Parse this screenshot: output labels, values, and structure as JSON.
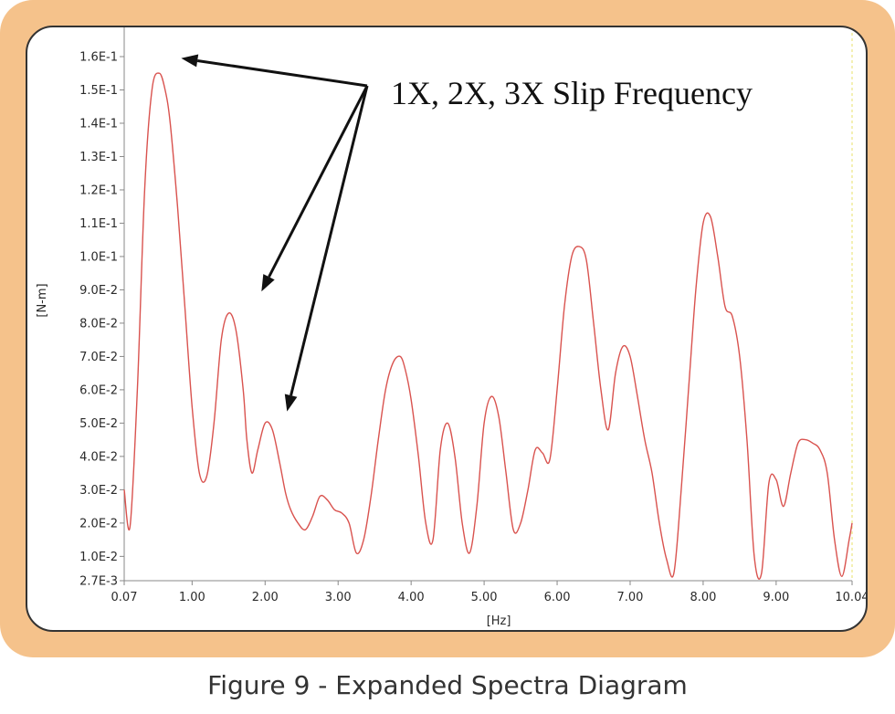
{
  "caption": "Figure 9 - Expanded Spectra Diagram",
  "colors": {
    "frame": "#f5c28b",
    "series": "#d9534f",
    "axis": "#888888",
    "arrow": "#111111"
  },
  "chart_data": {
    "type": "line",
    "title": "",
    "annotation": "1X, 2X, 3X Slip Frequency",
    "xlabel": "[Hz]",
    "ylabel": "[N-m]",
    "xlim": [
      0.07,
      10.04
    ],
    "ylim": [
      0.0027,
      0.16
    ],
    "grid": false,
    "xticks": [
      {
        "v": 0.07,
        "label": "0.07"
      },
      {
        "v": 1.0,
        "label": "1.00"
      },
      {
        "v": 2.0,
        "label": "2.00"
      },
      {
        "v": 3.0,
        "label": "3.00"
      },
      {
        "v": 4.0,
        "label": "4.00"
      },
      {
        "v": 5.0,
        "label": "5.00"
      },
      {
        "v": 6.0,
        "label": "6.00"
      },
      {
        "v": 7.0,
        "label": "7.00"
      },
      {
        "v": 8.0,
        "label": "8.00"
      },
      {
        "v": 9.0,
        "label": "9.00"
      },
      {
        "v": 10.04,
        "label": "10.04"
      }
    ],
    "yticks": [
      {
        "v": 0.0027,
        "label": "2.7E-3"
      },
      {
        "v": 0.01,
        "label": "1.0E-2"
      },
      {
        "v": 0.02,
        "label": "2.0E-2"
      },
      {
        "v": 0.03,
        "label": "3.0E-2"
      },
      {
        "v": 0.04,
        "label": "4.0E-2"
      },
      {
        "v": 0.05,
        "label": "5.0E-2"
      },
      {
        "v": 0.06,
        "label": "6.0E-2"
      },
      {
        "v": 0.07,
        "label": "7.0E-2"
      },
      {
        "v": 0.08,
        "label": "8.0E-2"
      },
      {
        "v": 0.09,
        "label": "9.0E-2"
      },
      {
        "v": 0.1,
        "label": "1.0E-1"
      },
      {
        "v": 0.11,
        "label": "1.1E-1"
      },
      {
        "v": 0.12,
        "label": "1.2E-1"
      },
      {
        "v": 0.13,
        "label": "1.3E-1"
      },
      {
        "v": 0.14,
        "label": "1.4E-1"
      },
      {
        "v": 0.15,
        "label": "1.5E-1"
      },
      {
        "v": 0.16,
        "label": "1.6E-1"
      }
    ],
    "arrow_targets": [
      {
        "x": 0.85,
        "y": 0.1595
      },
      {
        "x": 1.95,
        "y": 0.0895
      },
      {
        "x": 2.3,
        "y": 0.0535
      }
    ],
    "series": [
      {
        "x": [
          0.07,
          0.15,
          0.25,
          0.35,
          0.45,
          0.55,
          0.63,
          0.7,
          0.8,
          0.9,
          1.0,
          1.1,
          1.2,
          1.3,
          1.4,
          1.5,
          1.6,
          1.7,
          1.75,
          1.82,
          1.9,
          2.0,
          2.1,
          2.2,
          2.28,
          2.35,
          2.45,
          2.55,
          2.65,
          2.75,
          2.85,
          2.95,
          3.05,
          3.15,
          3.25,
          3.35,
          3.45,
          3.55,
          3.65,
          3.75,
          3.85,
          3.92,
          4.0,
          4.1,
          4.2,
          4.3,
          4.4,
          4.5,
          4.6,
          4.7,
          4.8,
          4.9,
          5.0,
          5.1,
          5.2,
          5.3,
          5.4,
          5.5,
          5.6,
          5.7,
          5.8,
          5.9,
          6.0,
          6.1,
          6.2,
          6.3,
          6.4,
          6.5,
          6.6,
          6.7,
          6.8,
          6.9,
          7.0,
          7.1,
          7.2,
          7.3,
          7.4,
          7.5,
          7.6,
          7.7,
          7.8,
          7.9,
          8.0,
          8.1,
          8.2,
          8.3,
          8.4,
          8.5,
          8.6,
          8.7,
          8.8,
          8.9,
          9.0,
          9.1,
          9.2,
          9.3,
          9.4,
          9.5,
          9.6,
          9.7,
          9.8,
          9.9,
          10.0,
          10.04
        ],
        "y": [
          0.03,
          0.019,
          0.06,
          0.12,
          0.15,
          0.155,
          0.15,
          0.14,
          0.115,
          0.085,
          0.055,
          0.035,
          0.034,
          0.05,
          0.075,
          0.083,
          0.078,
          0.06,
          0.045,
          0.035,
          0.042,
          0.05,
          0.048,
          0.038,
          0.029,
          0.024,
          0.02,
          0.018,
          0.022,
          0.028,
          0.027,
          0.024,
          0.023,
          0.02,
          0.011,
          0.015,
          0.028,
          0.045,
          0.06,
          0.068,
          0.07,
          0.066,
          0.057,
          0.04,
          0.02,
          0.015,
          0.042,
          0.05,
          0.04,
          0.02,
          0.011,
          0.025,
          0.05,
          0.058,
          0.052,
          0.035,
          0.018,
          0.02,
          0.03,
          0.042,
          0.041,
          0.039,
          0.06,
          0.085,
          0.1,
          0.103,
          0.099,
          0.08,
          0.06,
          0.048,
          0.065,
          0.073,
          0.07,
          0.058,
          0.045,
          0.035,
          0.02,
          0.009,
          0.005,
          0.03,
          0.06,
          0.09,
          0.11,
          0.112,
          0.1,
          0.085,
          0.082,
          0.07,
          0.045,
          0.01,
          0.005,
          0.032,
          0.033,
          0.025,
          0.035,
          0.044,
          0.045,
          0.044,
          0.042,
          0.035,
          0.015,
          0.004,
          0.015,
          0.02
        ]
      }
    ]
  }
}
